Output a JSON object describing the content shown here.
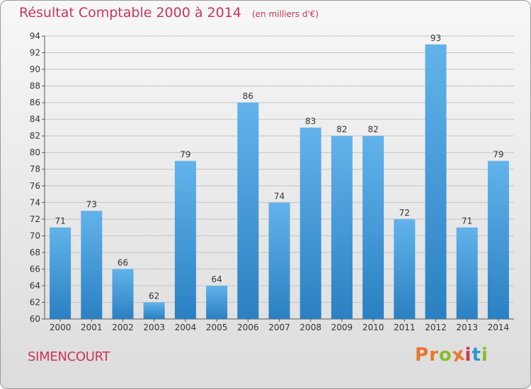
{
  "header": {
    "title": "Résultat Comptable 2000 à 2014",
    "subtitle": "(en milliers d'€)"
  },
  "footer": {
    "commune": "SIMENCOURT",
    "logo_text": "Proxiti"
  },
  "colors": {
    "title": "#c8365a",
    "bar_top": "#62b3ea",
    "bar_bottom": "#2a80c2",
    "logo_letters": [
      "#e8762d",
      "#e8762d",
      "#8dbb2d",
      "#e8762d",
      "#c8365a",
      "#2a9ad5",
      "#8dbb2d"
    ]
  },
  "chart_data": {
    "type": "bar",
    "title": "Résultat Comptable 2000 à 2014",
    "subtitle": "(en milliers d'€)",
    "xlabel": "",
    "ylabel": "",
    "categories": [
      "2000",
      "2001",
      "2002",
      "2003",
      "2004",
      "2005",
      "2006",
      "2007",
      "2008",
      "2009",
      "2010",
      "2011",
      "2012",
      "2013",
      "2014"
    ],
    "values": [
      71,
      73,
      66,
      62,
      79,
      64,
      86,
      74,
      83,
      82,
      82,
      72,
      93,
      71,
      79
    ],
    "ylim": [
      60,
      94
    ],
    "yticks": [
      60,
      62,
      64,
      66,
      68,
      70,
      72,
      74,
      76,
      78,
      80,
      82,
      84,
      86,
      88,
      90,
      92,
      94
    ],
    "grid": true,
    "legend": "none"
  }
}
